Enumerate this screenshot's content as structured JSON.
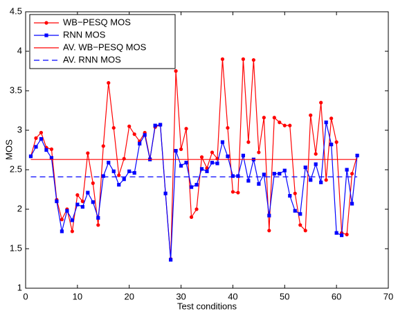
{
  "chart_data": {
    "type": "line",
    "xlabel": "Test conditions",
    "ylabel": "MOS",
    "x": [
      1,
      2,
      3,
      4,
      5,
      6,
      7,
      8,
      9,
      10,
      11,
      12,
      13,
      14,
      15,
      16,
      17,
      18,
      19,
      20,
      21,
      22,
      23,
      24,
      25,
      26,
      27,
      28,
      29,
      30,
      31,
      32,
      33,
      34,
      35,
      36,
      37,
      38,
      39,
      40,
      41,
      42,
      43,
      44,
      45,
      46,
      47,
      48,
      49,
      50,
      51,
      52,
      53,
      54,
      55,
      56,
      57,
      58,
      59,
      60,
      61,
      62,
      63,
      64
    ],
    "series": [
      {
        "name": "WB−PESQ MOS",
        "color": "#ff0000",
        "marker": "circle",
        "values": [
          2.67,
          2.9,
          2.97,
          2.78,
          2.76,
          2.12,
          1.87,
          2.0,
          1.72,
          2.18,
          2.1,
          2.71,
          2.33,
          1.8,
          2.8,
          3.6,
          3.03,
          2.43,
          2.64,
          3.05,
          2.95,
          2.86,
          2.97,
          2.64,
          3.04,
          3.07,
          2.2,
          1.37,
          3.75,
          2.76,
          3.02,
          1.9,
          2.0,
          2.66,
          2.52,
          2.72,
          2.64,
          3.9,
          3.03,
          2.22,
          2.21,
          3.9,
          2.85,
          3.89,
          2.72,
          3.16,
          1.73,
          3.16,
          3.1,
          3.06,
          3.06,
          2.2,
          1.8,
          1.73,
          3.19,
          2.7,
          3.35,
          2.37,
          3.15,
          2.85,
          1.7,
          1.68,
          2.45,
          2.68
        ]
      },
      {
        "name": "RNN MOS",
        "color": "#0000ff",
        "marker": "square",
        "values": [
          2.67,
          2.79,
          2.89,
          2.75,
          2.65,
          2.1,
          1.72,
          1.98,
          1.86,
          2.06,
          2.03,
          2.21,
          2.09,
          1.89,
          2.42,
          2.59,
          2.48,
          2.31,
          2.38,
          2.48,
          2.46,
          2.83,
          2.94,
          2.63,
          3.06,
          3.07,
          2.2,
          1.36,
          2.74,
          2.55,
          2.59,
          2.28,
          2.31,
          2.51,
          2.48,
          2.59,
          2.58,
          2.85,
          2.67,
          2.42,
          2.42,
          2.68,
          2.36,
          2.63,
          2.32,
          2.44,
          1.92,
          2.45,
          2.45,
          2.49,
          2.17,
          1.98,
          1.94,
          2.53,
          2.37,
          2.57,
          2.34,
          3.1,
          2.82,
          1.7,
          1.67,
          2.5,
          2.07,
          2.68
        ]
      },
      {
        "name": "AV. WB−PESQ MOS",
        "color": "#ff0000",
        "dashed": false,
        "x": [
          1,
          64
        ],
        "values": [
          2.63,
          2.63
        ]
      },
      {
        "name": "AV. RNN MOS",
        "color": "#0000ff",
        "dashed": true,
        "x": [
          1,
          64
        ],
        "values": [
          2.41,
          2.41
        ]
      }
    ],
    "xlim": [
      0,
      70
    ],
    "xticks": [
      0,
      10,
      20,
      30,
      40,
      50,
      60,
      70
    ],
    "ylim": [
      1,
      4.5
    ],
    "yticks": [
      1,
      1.5,
      2,
      2.5,
      3,
      3.5,
      4,
      4.5
    ],
    "grid": false,
    "legend": "top-left"
  }
}
